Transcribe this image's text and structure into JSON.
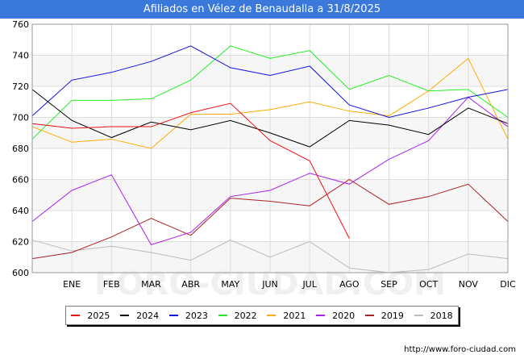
{
  "title": "Afiliados en Vélez de Benaudalla a 31/8/2025",
  "footer": "http://www.foro-ciudad.com",
  "watermark": "FORO-CIUDAD.COM",
  "chart_data": {
    "type": "line",
    "title": "Afiliados en Vélez de Benaudalla a 31/8/2025",
    "categories": [
      "",
      "ENE",
      "FEB",
      "MAR",
      "ABR",
      "MAY",
      "JUN",
      "JUL",
      "AGO",
      "SEP",
      "OCT",
      "NOV",
      "DIC"
    ],
    "ylim": [
      600,
      760
    ],
    "yticks": [
      600,
      620,
      640,
      660,
      680,
      700,
      720,
      740,
      760
    ],
    "grid": true,
    "legend_position": "bottom",
    "series": [
      {
        "name": "2025",
        "color": "#ee1111",
        "values": [
          696,
          693,
          694,
          694,
          703,
          709,
          685,
          672,
          622,
          null,
          null,
          null,
          null
        ]
      },
      {
        "name": "2024",
        "color": "#000000",
        "values": [
          718,
          698,
          687,
          697,
          692,
          698,
          690,
          681,
          698,
          695,
          689,
          706,
          696
        ]
      },
      {
        "name": "2023",
        "color": "#1111dd",
        "values": [
          701,
          724,
          729,
          736,
          746,
          732,
          727,
          733,
          708,
          700,
          706,
          713,
          718
        ]
      },
      {
        "name": "2022",
        "color": "#22ee22",
        "values": [
          686,
          711,
          711,
          712,
          724,
          746,
          738,
          743,
          718,
          727,
          717,
          718,
          700
        ]
      },
      {
        "name": "2021",
        "color": "#ffaa00",
        "values": [
          694,
          684,
          686,
          680,
          702,
          702,
          705,
          710,
          704,
          701,
          717,
          738,
          686
        ]
      },
      {
        "name": "2020",
        "color": "#aa22ee",
        "values": [
          633,
          653,
          663,
          618,
          626,
          649,
          653,
          664,
          657,
          673,
          685,
          713,
          694
        ]
      },
      {
        "name": "2019",
        "color": "#aa2222",
        "values": [
          609,
          613,
          623,
          635,
          624,
          648,
          646,
          643,
          660,
          644,
          649,
          657,
          633
        ]
      },
      {
        "name": "2018",
        "color": "#bbbbbb",
        "values": [
          621,
          614,
          617,
          613,
          608,
          621,
          610,
          620,
          603,
          600,
          602,
          612,
          609
        ]
      }
    ]
  }
}
